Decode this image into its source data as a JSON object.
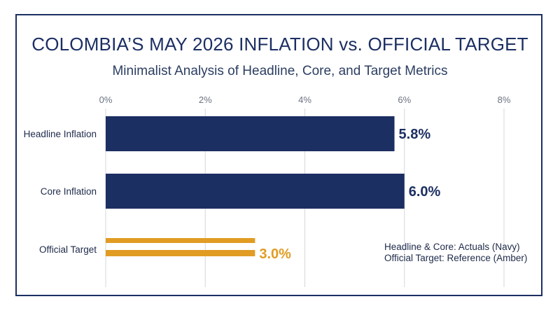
{
  "header": {
    "title": "COLOMBIA’S MAY 2026 INFLATION vs. OFFICIAL TARGET",
    "subtitle": "Minimalist Analysis of Headline, Core, and Target Metrics"
  },
  "legend_note": {
    "line1": "Headline & Core: Actuals (Navy)",
    "line2": "Official Target: Reference (Amber)"
  },
  "colors": {
    "navy": "#1c2f63",
    "amber": "#e19c23",
    "grid": "#d4d7dd",
    "text": "#2c3e62"
  },
  "chart_data": {
    "type": "bar",
    "orientation": "horizontal",
    "categories": [
      "Headline Inflation",
      "Core Inflation",
      "Official Target"
    ],
    "values": [
      5.8,
      6.0,
      3.0
    ],
    "value_labels": [
      "5.8%",
      "6.0%",
      "3.0%"
    ],
    "bar_styles": [
      "solid-navy",
      "solid-navy",
      "amber-double-line"
    ],
    "xticks": [
      "0%",
      "2%",
      "4%",
      "6%",
      "8%"
    ],
    "xtick_values": [
      0,
      2,
      4,
      6,
      8
    ],
    "xlim": [
      0,
      8
    ],
    "grid": true,
    "legend_position": "bottom-right"
  }
}
